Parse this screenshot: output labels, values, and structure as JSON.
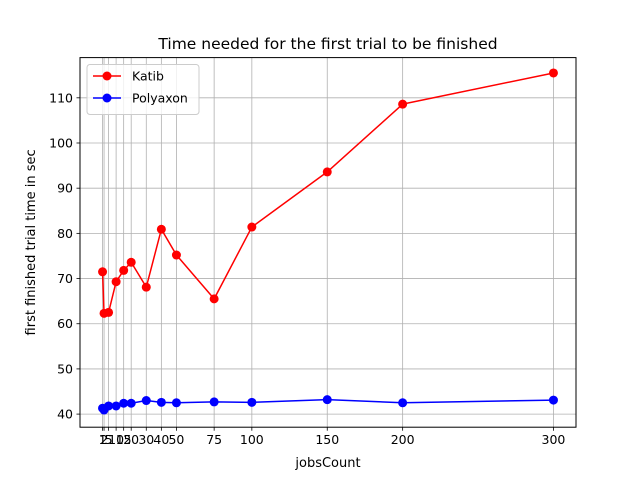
{
  "chart_data": {
    "type": "line",
    "title": "Time needed for the first trial to be finished",
    "xlabel": "jobsCount",
    "ylabel": "first finished trial time in sec",
    "x": [
      1,
      2,
      5,
      10,
      15,
      20,
      30,
      40,
      50,
      75,
      100,
      150,
      200,
      300
    ],
    "xticks": [
      1,
      2,
      5,
      10,
      15,
      20,
      30,
      40,
      50,
      75,
      100,
      150,
      200,
      300
    ],
    "xtick_labels": [
      "1",
      "2",
      "5",
      "10",
      "15",
      "20",
      "30",
      "40",
      "50",
      "75",
      "100",
      "150",
      "200",
      "300"
    ],
    "yticks": [
      40,
      50,
      60,
      70,
      80,
      90,
      100,
      110
    ],
    "xlim": [
      -13.95,
      314.95
    ],
    "ylim": [
      37.1,
      118.9
    ],
    "grid": true,
    "legend_position": "top-left",
    "series": [
      {
        "name": "Katib",
        "color": "#ff0000",
        "values": [
          71.5,
          62.3,
          62.5,
          69.3,
          71.8,
          73.6,
          68.1,
          80.9,
          75.2,
          65.5,
          81.4,
          93.6,
          108.6,
          115.5
        ]
      },
      {
        "name": "Polyaxon",
        "color": "#0000ff",
        "values": [
          41.3,
          40.9,
          41.8,
          41.8,
          42.4,
          42.4,
          43.0,
          42.6,
          42.5,
          42.7,
          42.6,
          43.2,
          42.5,
          43.1
        ]
      }
    ]
  }
}
